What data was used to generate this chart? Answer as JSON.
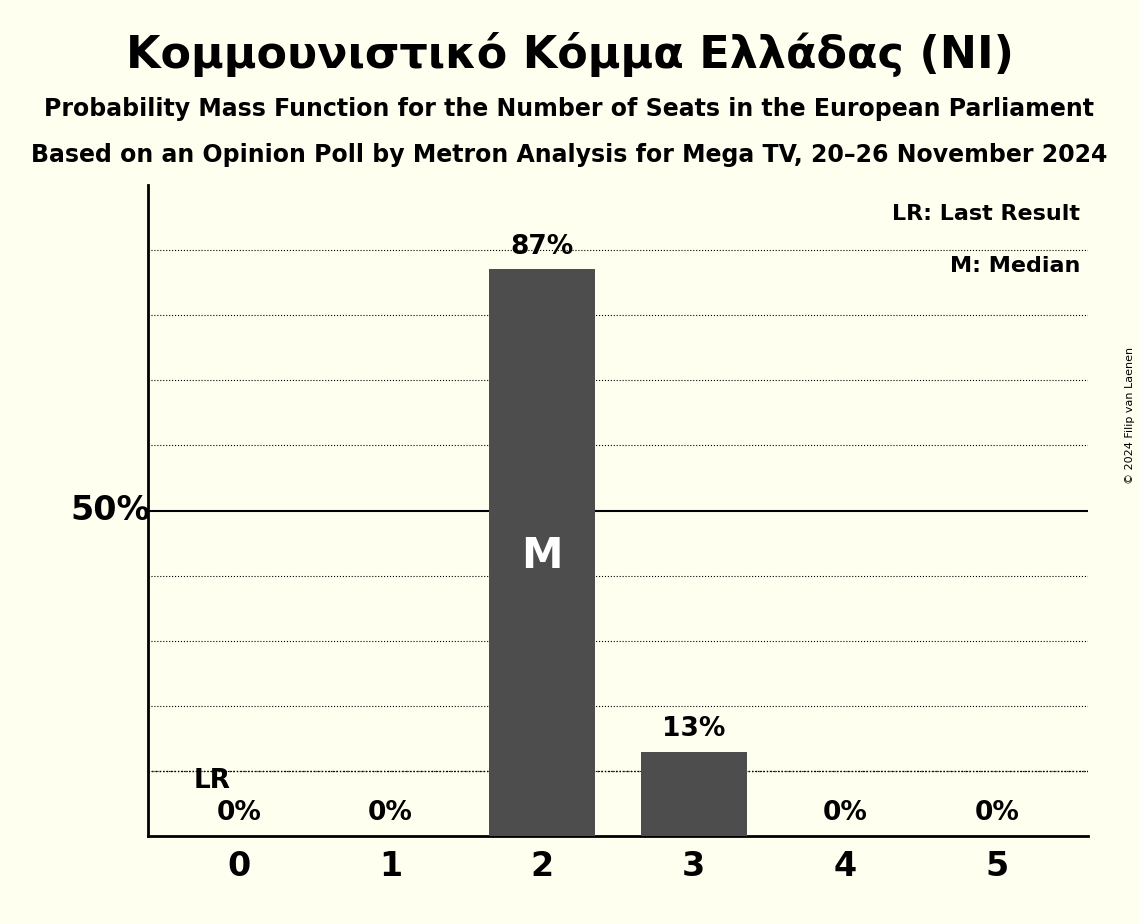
{
  "title": "Κομμουνιστικό Κόμμα Ελλάδας (NI)",
  "subtitle1": "Probability Mass Function for the Number of Seats in the European Parliament",
  "subtitle2": "Based on an Opinion Poll by Metron Analysis for Mega TV, 20–26 November 2024",
  "copyright": "© 2024 Filip van Laenen",
  "categories": [
    0,
    1,
    2,
    3,
    4,
    5
  ],
  "values": [
    0,
    0,
    87,
    13,
    0,
    0
  ],
  "bar_color": "#4d4d4d",
  "background_color": "#fffff0",
  "median_seat": 2,
  "last_result_seat": 0,
  "fifty_percent_line": 50,
  "ylabel_text": "50%",
  "legend_lr": "LR: Last Result",
  "legend_m": "M: Median",
  "grid_levels": [
    10,
    20,
    30,
    40,
    60,
    70,
    80,
    90
  ],
  "solid_line_level": 50,
  "ylim": [
    0,
    100
  ],
  "bar_width": 0.7
}
